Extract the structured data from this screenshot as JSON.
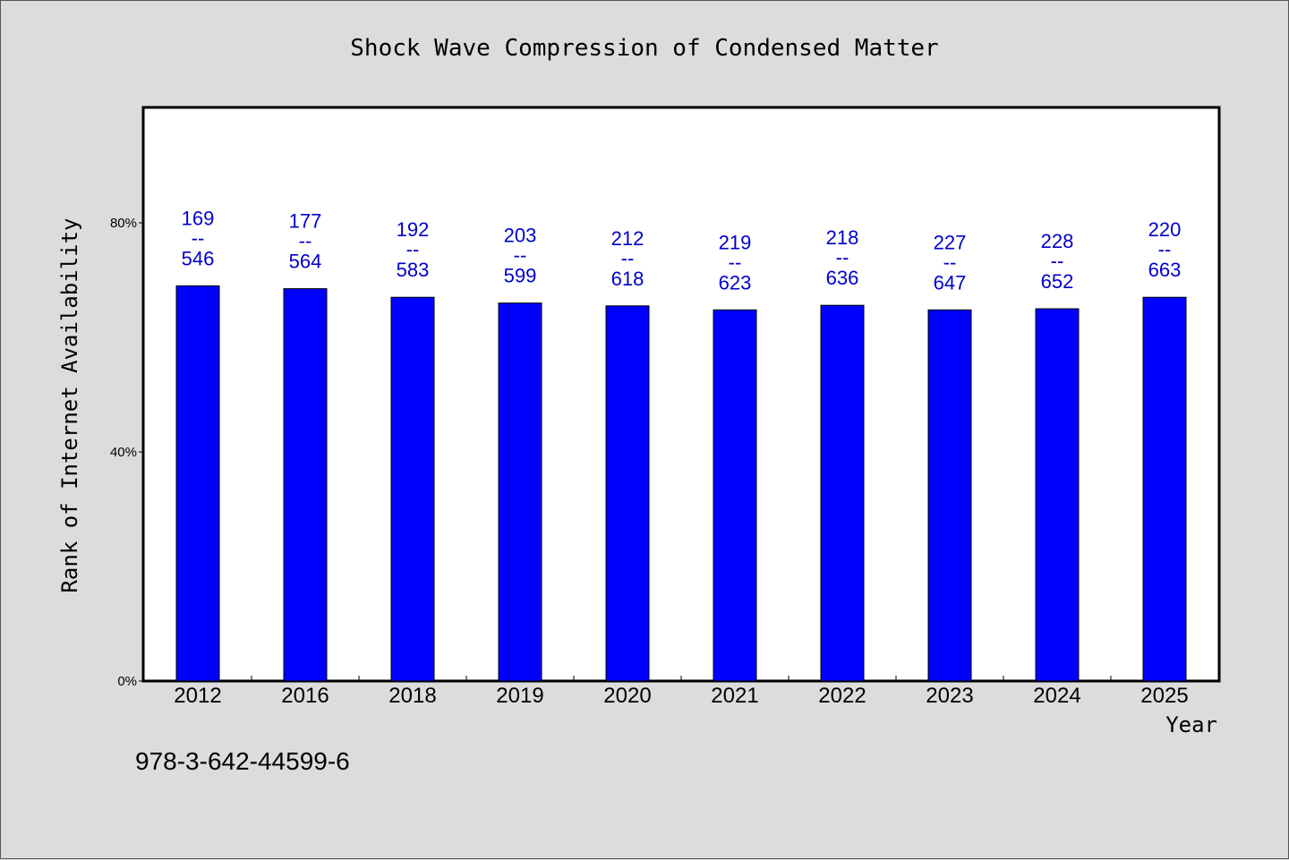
{
  "chart_data": {
    "type": "bar",
    "title": "Shock Wave Compression of Condensed Matter",
    "xlabel": "Year",
    "ylabel": "Rank of Internet Availability",
    "categories": [
      "2012",
      "2016",
      "2018",
      "2019",
      "2020",
      "2021",
      "2022",
      "2023",
      "2024",
      "2025"
    ],
    "series": [
      {
        "values": [
          69.0,
          68.5,
          67.0,
          66.0,
          65.5,
          64.8,
          65.6,
          64.8,
          65.0,
          67.0
        ],
        "color": "#0000ff"
      }
    ],
    "data_labels": [
      {
        "top": "169",
        "sep": "--",
        "bottom": "546"
      },
      {
        "top": "177",
        "sep": "--",
        "bottom": "564"
      },
      {
        "top": "192",
        "sep": "--",
        "bottom": "583"
      },
      {
        "top": "203",
        "sep": "--",
        "bottom": "599"
      },
      {
        "top": "212",
        "sep": "--",
        "bottom": "618"
      },
      {
        "top": "219",
        "sep": "--",
        "bottom": "623"
      },
      {
        "top": "218",
        "sep": "--",
        "bottom": "636"
      },
      {
        "top": "227",
        "sep": "--",
        "bottom": "647"
      },
      {
        "top": "228",
        "sep": "--",
        "bottom": "652"
      },
      {
        "top": "220",
        "sep": "--",
        "bottom": "663"
      }
    ],
    "y_ticks": [
      {
        "value": 0,
        "label": "0%"
      },
      {
        "value": 40,
        "label": "40%"
      },
      {
        "value": 80,
        "label": "80%"
      }
    ],
    "ylim": [
      0,
      100
    ],
    "grid": false,
    "legend": "none",
    "bar_color": "#0000ff",
    "label_color": "#0000cc"
  },
  "footer": {
    "isbn": "978-3-642-44599-6"
  }
}
